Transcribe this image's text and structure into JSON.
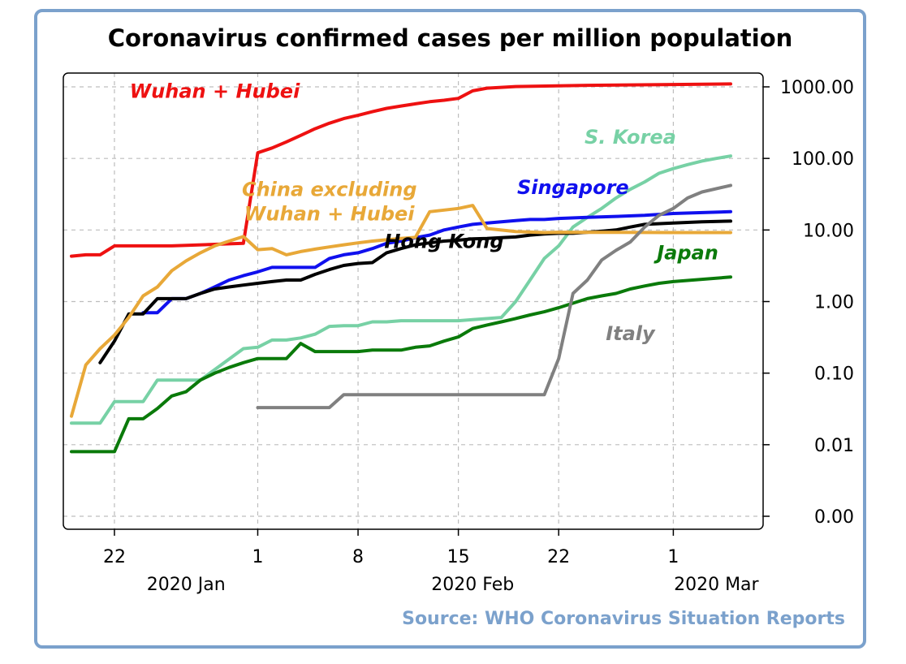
{
  "chart_data": {
    "type": "line",
    "title": "Coronavirus confirmed cases per million population",
    "source": "Source: WHO Coronavirus Situation Reports",
    "x_axis": {
      "range": [
        "2020-01-19",
        "2020-03-06"
      ],
      "day_ticks": [
        {
          "date": "2020-01-22",
          "label": "22"
        },
        {
          "date": "2020-02-01",
          "label": "1"
        },
        {
          "date": "2020-02-08",
          "label": "8"
        },
        {
          "date": "2020-02-15",
          "label": "15"
        },
        {
          "date": "2020-02-22",
          "label": "22"
        },
        {
          "date": "2020-03-01",
          "label": "1"
        }
      ],
      "month_labels": [
        {
          "date": "2020-01-27",
          "label": "2020 Jan"
        },
        {
          "date": "2020-02-16",
          "label": "2020 Feb"
        },
        {
          "date": "2020-03-04",
          "label": "2020 Mar"
        }
      ]
    },
    "y_axis": {
      "scale": "log",
      "position": "right",
      "range": [
        0.0007,
        1300
      ],
      "ticks": [
        {
          "value": 0.001,
          "label": "0.00"
        },
        {
          "value": 0.01,
          "label": "0.01"
        },
        {
          "value": 0.1,
          "label": "0.10"
        },
        {
          "value": 1,
          "label": "1.00"
        },
        {
          "value": 10,
          "label": "10.00"
        },
        {
          "value": 100,
          "label": "100.00"
        },
        {
          "value": 1000,
          "label": "1000.00"
        }
      ]
    },
    "grid": true,
    "series": [
      {
        "name": "Wuhan + Hubei",
        "color": "#ee1111",
        "label_at": [
          "2020-01-29",
          700
        ],
        "points": [
          [
            "2020-01-19",
            4.3
          ],
          [
            "2020-01-20",
            4.5
          ],
          [
            "2020-01-21",
            4.5
          ],
          [
            "2020-01-22",
            6
          ],
          [
            "2020-01-26",
            6
          ],
          [
            "2020-01-31",
            6.5
          ],
          [
            "2020-02-01",
            120
          ],
          [
            "2020-02-02",
            140
          ],
          [
            "2020-02-03",
            170
          ],
          [
            "2020-02-04",
            210
          ],
          [
            "2020-02-05",
            260
          ],
          [
            "2020-02-06",
            310
          ],
          [
            "2020-02-07",
            360
          ],
          [
            "2020-02-08",
            400
          ],
          [
            "2020-02-09",
            450
          ],
          [
            "2020-02-10",
            500
          ],
          [
            "2020-02-11",
            540
          ],
          [
            "2020-02-12",
            580
          ],
          [
            "2020-02-13",
            620
          ],
          [
            "2020-02-14",
            650
          ],
          [
            "2020-02-15",
            690
          ],
          [
            "2020-02-16",
            880
          ],
          [
            "2020-02-17",
            960
          ],
          [
            "2020-02-19",
            1010
          ],
          [
            "2020-02-24",
            1050
          ],
          [
            "2020-03-01",
            1080
          ],
          [
            "2020-03-05",
            1100
          ]
        ]
      },
      {
        "name": "S. Korea",
        "color": "#77d1a5",
        "label_at": [
          "2020-02-27",
          160
        ],
        "points": [
          [
            "2020-01-19",
            0.02
          ],
          [
            "2020-01-21",
            0.02
          ],
          [
            "2020-01-22",
            0.04
          ],
          [
            "2020-01-24",
            0.04
          ],
          [
            "2020-01-25",
            0.08
          ],
          [
            "2020-01-28",
            0.08
          ],
          [
            "2020-01-31",
            0.22
          ],
          [
            "2020-02-01",
            0.23
          ],
          [
            "2020-02-02",
            0.29
          ],
          [
            "2020-02-03",
            0.29
          ],
          [
            "2020-02-04",
            0.31
          ],
          [
            "2020-02-05",
            0.35
          ],
          [
            "2020-02-06",
            0.45
          ],
          [
            "2020-02-07",
            0.46
          ],
          [
            "2020-02-08",
            0.46
          ],
          [
            "2020-02-09",
            0.52
          ],
          [
            "2020-02-10",
            0.52
          ],
          [
            "2020-02-11",
            0.54
          ],
          [
            "2020-02-15",
            0.54
          ],
          [
            "2020-02-16",
            0.56
          ],
          [
            "2020-02-18",
            0.6
          ],
          [
            "2020-02-19",
            1
          ],
          [
            "2020-02-20",
            2
          ],
          [
            "2020-02-21",
            4
          ],
          [
            "2020-02-22",
            6
          ],
          [
            "2020-02-23",
            11
          ],
          [
            "2020-02-24",
            15
          ],
          [
            "2020-02-25",
            20
          ],
          [
            "2020-02-26",
            28
          ],
          [
            "2020-02-27",
            37
          ],
          [
            "2020-02-28",
            47
          ],
          [
            "2020-02-29",
            62
          ],
          [
            "2020-03-01",
            72
          ],
          [
            "2020-03-02",
            82
          ],
          [
            "2020-03-03",
            92
          ],
          [
            "2020-03-04",
            100
          ],
          [
            "2020-03-05",
            108
          ]
        ]
      },
      {
        "name": "Singapore",
        "color": "#1010ee",
        "label_at": [
          "2020-02-23",
          32
        ],
        "points": [
          [
            "2020-01-24",
            0.7
          ],
          [
            "2020-01-25",
            0.7
          ],
          [
            "2020-01-26",
            1.1
          ],
          [
            "2020-01-27",
            1.1
          ],
          [
            "2020-01-28",
            1.3
          ],
          [
            "2020-01-29",
            1.6
          ],
          [
            "2020-01-30",
            2
          ],
          [
            "2020-01-31",
            2.3
          ],
          [
            "2020-02-01",
            2.6
          ],
          [
            "2020-02-02",
            3
          ],
          [
            "2020-02-03",
            3
          ],
          [
            "2020-02-04",
            3
          ],
          [
            "2020-02-05",
            3
          ],
          [
            "2020-02-06",
            4
          ],
          [
            "2020-02-07",
            4.5
          ],
          [
            "2020-02-08",
            4.8
          ],
          [
            "2020-02-09",
            5.5
          ],
          [
            "2020-02-10",
            6.5
          ],
          [
            "2020-02-11",
            7
          ],
          [
            "2020-02-12",
            7.8
          ],
          [
            "2020-02-13",
            8.5
          ],
          [
            "2020-02-14",
            10
          ],
          [
            "2020-02-15",
            11
          ],
          [
            "2020-02-16",
            12
          ],
          [
            "2020-02-17",
            12.5
          ],
          [
            "2020-02-18",
            13
          ],
          [
            "2020-02-19",
            13.5
          ],
          [
            "2020-02-20",
            14
          ],
          [
            "2020-02-21",
            14
          ],
          [
            "2020-02-22",
            14.5
          ],
          [
            "2020-02-24",
            15
          ],
          [
            "2020-02-26",
            15.5
          ],
          [
            "2020-02-28",
            16
          ],
          [
            "2020-03-01",
            17
          ],
          [
            "2020-03-05",
            18
          ]
        ]
      },
      {
        "name": "Hong Kong",
        "color": "#000000",
        "label_at": [
          "2020-02-14",
          5.6
        ],
        "points": [
          [
            "2020-01-21",
            0.14
          ],
          [
            "2020-01-22",
            0.28
          ],
          [
            "2020-01-23",
            0.67
          ],
          [
            "2020-01-24",
            0.67
          ],
          [
            "2020-01-25",
            1.1
          ],
          [
            "2020-01-26",
            1.1
          ],
          [
            "2020-01-27",
            1.1
          ],
          [
            "2020-01-28",
            1.3
          ],
          [
            "2020-01-29",
            1.5
          ],
          [
            "2020-01-30",
            1.6
          ],
          [
            "2020-01-31",
            1.7
          ],
          [
            "2020-02-01",
            1.8
          ],
          [
            "2020-02-02",
            1.9
          ],
          [
            "2020-02-03",
            2.0
          ],
          [
            "2020-02-04",
            2.0
          ],
          [
            "2020-02-05",
            2.4
          ],
          [
            "2020-02-06",
            2.8
          ],
          [
            "2020-02-07",
            3.2
          ],
          [
            "2020-02-08",
            3.4
          ],
          [
            "2020-02-09",
            3.5
          ],
          [
            "2020-02-10",
            4.8
          ],
          [
            "2020-02-11",
            5.5
          ],
          [
            "2020-02-12",
            6.2
          ],
          [
            "2020-02-13",
            6.6
          ],
          [
            "2020-02-14",
            7
          ],
          [
            "2020-02-15",
            7.2
          ],
          [
            "2020-02-16",
            7.5
          ],
          [
            "2020-02-17",
            7.6
          ],
          [
            "2020-02-18",
            7.8
          ],
          [
            "2020-02-19",
            8
          ],
          [
            "2020-02-20",
            8.5
          ],
          [
            "2020-02-21",
            8.8
          ],
          [
            "2020-02-22",
            9
          ],
          [
            "2020-02-23",
            9
          ],
          [
            "2020-02-24",
            9.3
          ],
          [
            "2020-02-25",
            9.6
          ],
          [
            "2020-02-26",
            10
          ],
          [
            "2020-02-27",
            11
          ],
          [
            "2020-02-28",
            12
          ],
          [
            "2020-03-01",
            12.5
          ],
          [
            "2020-03-03",
            13
          ],
          [
            "2020-03-05",
            13.3
          ]
        ]
      },
      {
        "name": "China excluding\nWuhan + Hubei",
        "color": "#e8a838",
        "label_at": [
          "2020-02-06",
          30
        ],
        "points": [
          [
            "2020-01-19",
            0.025
          ],
          [
            "2020-01-20",
            0.13
          ],
          [
            "2020-01-21",
            0.22
          ],
          [
            "2020-01-22",
            0.34
          ],
          [
            "2020-01-23",
            0.6
          ],
          [
            "2020-01-24",
            1.2
          ],
          [
            "2020-01-25",
            1.6
          ],
          [
            "2020-01-26",
            2.7
          ],
          [
            "2020-01-27",
            3.7
          ],
          [
            "2020-01-28",
            4.8
          ],
          [
            "2020-01-29",
            6
          ],
          [
            "2020-01-30",
            7
          ],
          [
            "2020-01-31",
            8.1
          ],
          [
            "2020-02-01",
            5.3
          ],
          [
            "2020-02-02",
            5.5
          ],
          [
            "2020-02-03",
            4.5
          ],
          [
            "2020-02-04",
            5
          ],
          [
            "2020-02-05",
            5.4
          ],
          [
            "2020-02-06",
            5.8
          ],
          [
            "2020-02-07",
            6.2
          ],
          [
            "2020-02-08",
            6.6
          ],
          [
            "2020-02-09",
            7
          ],
          [
            "2020-02-10",
            7.3
          ],
          [
            "2020-02-11",
            7.6
          ],
          [
            "2020-02-12",
            7.9
          ],
          [
            "2020-02-13",
            18
          ],
          [
            "2020-02-14",
            19
          ],
          [
            "2020-02-15",
            20
          ],
          [
            "2020-02-16",
            22
          ],
          [
            "2020-02-17",
            10.5
          ],
          [
            "2020-02-19",
            9.5
          ],
          [
            "2020-02-21",
            9.2
          ],
          [
            "2020-02-22",
            9.3
          ],
          [
            "2020-03-01",
            9.2
          ],
          [
            "2020-03-05",
            9.2
          ]
        ]
      },
      {
        "name": "Japan",
        "color": "#0a7a0a",
        "label_at": [
          "2020-03-02",
          3.9
        ],
        "points": [
          [
            "2020-01-19",
            0.008
          ],
          [
            "2020-01-21",
            0.008
          ],
          [
            "2020-01-22",
            0.008
          ],
          [
            "2020-01-23",
            0.023
          ],
          [
            "2020-01-24",
            0.023
          ],
          [
            "2020-01-25",
            0.032
          ],
          [
            "2020-01-26",
            0.048
          ],
          [
            "2020-01-27",
            0.055
          ],
          [
            "2020-01-28",
            0.08
          ],
          [
            "2020-01-29",
            0.1
          ],
          [
            "2020-01-30",
            0.12
          ],
          [
            "2020-01-31",
            0.14
          ],
          [
            "2020-02-01",
            0.16
          ],
          [
            "2020-02-02",
            0.16
          ],
          [
            "2020-02-03",
            0.16
          ],
          [
            "2020-02-04",
            0.26
          ],
          [
            "2020-02-05",
            0.2
          ],
          [
            "2020-02-08",
            0.2
          ],
          [
            "2020-02-09",
            0.21
          ],
          [
            "2020-02-11",
            0.21
          ],
          [
            "2020-02-12",
            0.23
          ],
          [
            "2020-02-13",
            0.24
          ],
          [
            "2020-02-14",
            0.28
          ],
          [
            "2020-02-15",
            0.32
          ],
          [
            "2020-02-16",
            0.42
          ],
          [
            "2020-02-17",
            0.47
          ],
          [
            "2020-02-18",
            0.52
          ],
          [
            "2020-02-19",
            0.58
          ],
          [
            "2020-02-20",
            0.65
          ],
          [
            "2020-02-21",
            0.72
          ],
          [
            "2020-02-22",
            0.82
          ],
          [
            "2020-02-23",
            0.95
          ],
          [
            "2020-02-24",
            1.1
          ],
          [
            "2020-02-25",
            1.2
          ],
          [
            "2020-02-26",
            1.3
          ],
          [
            "2020-02-27",
            1.5
          ],
          [
            "2020-02-28",
            1.65
          ],
          [
            "2020-02-29",
            1.8
          ],
          [
            "2020-03-01",
            1.9
          ],
          [
            "2020-03-05",
            2.2
          ]
        ]
      },
      {
        "name": "Italy",
        "color": "#808080",
        "label_at": [
          "2020-02-27",
          0.29
        ],
        "points": [
          [
            "2020-02-01",
            0.033
          ],
          [
            "2020-02-06",
            0.033
          ],
          [
            "2020-02-07",
            0.05
          ],
          [
            "2020-02-21",
            0.05
          ],
          [
            "2020-02-22",
            0.16
          ],
          [
            "2020-02-23",
            1.3
          ],
          [
            "2020-02-24",
            2
          ],
          [
            "2020-02-25",
            3.8
          ],
          [
            "2020-02-26",
            5.2
          ],
          [
            "2020-02-27",
            6.8
          ],
          [
            "2020-02-28",
            11
          ],
          [
            "2020-02-29",
            16
          ],
          [
            "2020-03-01",
            20
          ],
          [
            "2020-03-02",
            28
          ],
          [
            "2020-03-03",
            34
          ],
          [
            "2020-03-05",
            42
          ]
        ]
      }
    ]
  }
}
